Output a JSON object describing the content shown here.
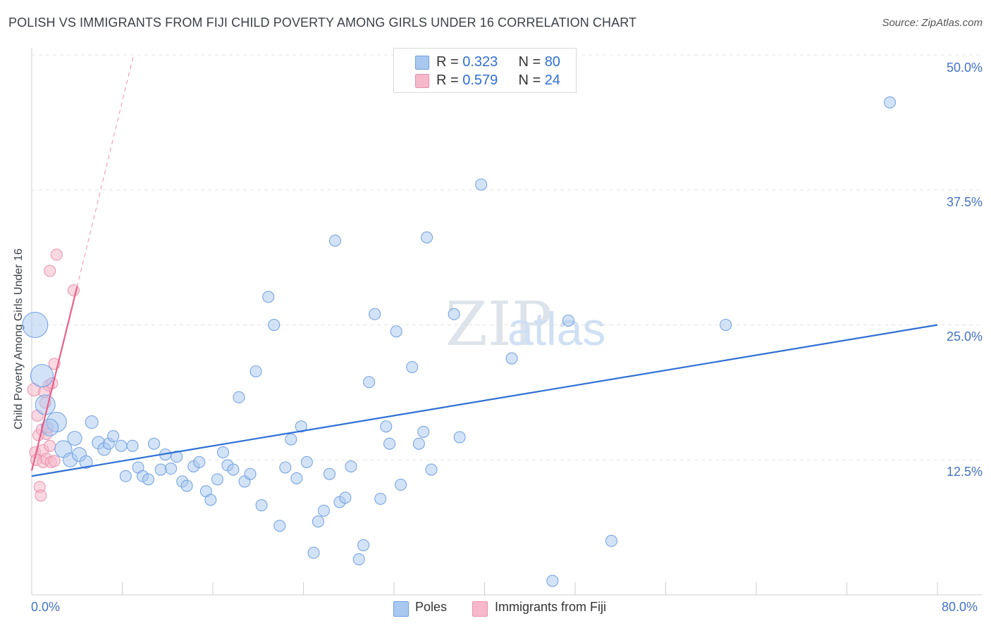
{
  "header": {
    "title": "POLISH VS IMMIGRANTS FROM FIJI CHILD POVERTY AMONG GIRLS UNDER 16 CORRELATION CHART",
    "source": "Source: ZipAtlas.com"
  },
  "watermark": {
    "zip": "ZIP",
    "atlas": "atlas"
  },
  "legend": {
    "rows": [
      {
        "r_label": "R = ",
        "r_value": "0.323",
        "n_label": "N = ",
        "n_value": "80",
        "color": "#a8c8f0"
      },
      {
        "r_label": "R = ",
        "r_value": "0.579",
        "n_label": "N = ",
        "n_value": "24",
        "color": "#f6b8cb"
      }
    ]
  },
  "bottom_legend": {
    "poles": "Poles",
    "fiji": "Immigrants from Fiji"
  },
  "colors": {
    "poles_fill": "#a8c8f0",
    "poles_stroke": "#6f9fe0",
    "poles_line": "#2f6fd6",
    "fiji_fill": "#f6b8cb",
    "fiji_stroke": "#e890ad",
    "fiji_line": "#e8608a",
    "grid": "#e4e4e4",
    "axis_label": "#4472c4"
  },
  "chart_data": {
    "type": "scatter",
    "title": "POLISH VS IMMIGRANTS FROM FIJI CHILD POVERTY AMONG GIRLS UNDER 16 CORRELATION CHART",
    "xlabel": "",
    "ylabel": "Child Poverty Among Girls Under 16",
    "xlim": [
      0,
      80
    ],
    "ylim": [
      0,
      50
    ],
    "x_tick_labels": [
      "0.0%",
      "80.0%"
    ],
    "y_ticks": [
      12.5,
      25.0,
      37.5,
      50.0
    ],
    "y_tick_labels": [
      "12.5%",
      "25.0%",
      "37.5%",
      "50.0%"
    ],
    "grid": true,
    "series": [
      {
        "name": "Poles",
        "r": 0.323,
        "n": 80,
        "trend": {
          "x0": 0,
          "y0": 11.0,
          "x1": 80,
          "y1": 25.0
        },
        "points": [
          [
            0.3,
            25.0,
            18
          ],
          [
            0.9,
            20.3,
            16
          ],
          [
            1.2,
            17.6,
            14
          ],
          [
            2.2,
            16.0,
            14
          ],
          [
            1.6,
            15.5,
            12
          ],
          [
            2.8,
            13.5,
            12
          ],
          [
            3.4,
            12.5,
            10
          ],
          [
            3.8,
            14.5,
            10
          ],
          [
            4.2,
            13.0,
            10
          ],
          [
            4.8,
            12.3,
            9
          ],
          [
            5.3,
            16.0,
            9
          ],
          [
            5.9,
            14.1,
            9
          ],
          [
            6.4,
            13.5,
            9
          ],
          [
            6.8,
            14.0,
            8
          ],
          [
            7.2,
            14.7,
            8
          ],
          [
            7.9,
            13.8,
            8
          ],
          [
            8.3,
            11.0,
            8
          ],
          [
            8.9,
            13.8,
            8
          ],
          [
            9.4,
            11.8,
            8
          ],
          [
            9.8,
            11.0,
            8
          ],
          [
            10.3,
            10.7,
            8
          ],
          [
            10.8,
            14.0,
            8
          ],
          [
            11.4,
            11.6,
            8
          ],
          [
            11.8,
            13.0,
            8
          ],
          [
            12.3,
            11.7,
            8
          ],
          [
            12.8,
            12.8,
            8
          ],
          [
            13.3,
            10.5,
            8
          ],
          [
            13.7,
            10.1,
            8
          ],
          [
            14.3,
            11.9,
            8
          ],
          [
            14.8,
            12.3,
            8
          ],
          [
            15.4,
            9.6,
            8
          ],
          [
            15.8,
            8.8,
            8
          ],
          [
            16.4,
            10.7,
            8
          ],
          [
            16.9,
            13.2,
            8
          ],
          [
            17.3,
            12.0,
            8
          ],
          [
            17.8,
            11.6,
            8
          ],
          [
            18.3,
            18.3,
            8
          ],
          [
            18.8,
            10.5,
            8
          ],
          [
            19.3,
            11.2,
            8
          ],
          [
            19.8,
            20.7,
            8
          ],
          [
            20.3,
            8.3,
            8
          ],
          [
            20.9,
            27.6,
            8
          ],
          [
            21.4,
            25.0,
            8
          ],
          [
            21.9,
            6.4,
            8
          ],
          [
            22.4,
            11.8,
            8
          ],
          [
            22.9,
            14.4,
            8
          ],
          [
            23.4,
            10.8,
            8
          ],
          [
            23.8,
            15.6,
            8
          ],
          [
            24.3,
            12.3,
            8
          ],
          [
            24.9,
            3.9,
            8
          ],
          [
            25.3,
            6.8,
            8
          ],
          [
            25.8,
            7.8,
            8
          ],
          [
            26.3,
            11.2,
            8
          ],
          [
            26.8,
            32.8,
            8
          ],
          [
            27.2,
            8.6,
            8
          ],
          [
            27.7,
            9.0,
            8
          ],
          [
            28.2,
            11.9,
            8
          ],
          [
            28.9,
            3.3,
            8
          ],
          [
            29.3,
            4.6,
            8
          ],
          [
            29.8,
            19.7,
            8
          ],
          [
            30.3,
            26.0,
            8
          ],
          [
            30.8,
            8.9,
            8
          ],
          [
            31.3,
            15.6,
            8
          ],
          [
            31.6,
            14.0,
            8
          ],
          [
            32.2,
            24.4,
            8
          ],
          [
            32.6,
            10.2,
            8
          ],
          [
            33.6,
            21.1,
            8
          ],
          [
            34.2,
            14.0,
            8
          ],
          [
            34.6,
            15.1,
            8
          ],
          [
            34.9,
            33.1,
            8
          ],
          [
            35.3,
            11.6,
            8
          ],
          [
            37.3,
            26.0,
            8
          ],
          [
            37.8,
            14.6,
            8
          ],
          [
            39.7,
            38.0,
            8
          ],
          [
            42.4,
            21.9,
            8
          ],
          [
            46.0,
            1.3,
            8
          ],
          [
            47.4,
            25.4,
            8
          ],
          [
            51.2,
            5.0,
            8
          ],
          [
            61.3,
            25.0,
            8
          ],
          [
            75.8,
            45.6,
            8
          ]
        ]
      },
      {
        "name": "Immigrants from Fiji",
        "r": 0.579,
        "n": 24,
        "trend": {
          "x0": 0,
          "y0": 11.5,
          "x1": 4.0,
          "y1": 28.5,
          "dash_x1": 9.0,
          "dash_y1": 50.0
        },
        "points": [
          [
            0.2,
            19.0,
            9
          ],
          [
            0.3,
            13.2,
            8
          ],
          [
            0.4,
            12.5,
            8
          ],
          [
            0.5,
            16.6,
            8
          ],
          [
            0.6,
            14.8,
            8
          ],
          [
            0.7,
            10.0,
            8
          ],
          [
            0.8,
            9.2,
            8
          ],
          [
            0.9,
            15.3,
            8
          ],
          [
            1.0,
            13.4,
            8
          ],
          [
            1.0,
            12.3,
            8
          ],
          [
            1.1,
            18.8,
            8
          ],
          [
            1.2,
            17.8,
            8
          ],
          [
            1.3,
            14.9,
            8
          ],
          [
            1.3,
            12.6,
            8
          ],
          [
            1.4,
            15.5,
            8
          ],
          [
            1.5,
            19.4,
            8
          ],
          [
            1.6,
            13.8,
            8
          ],
          [
            1.6,
            30.0,
            8
          ],
          [
            1.7,
            12.3,
            8
          ],
          [
            1.8,
            19.6,
            8
          ],
          [
            2.0,
            12.4,
            8
          ],
          [
            2.0,
            21.4,
            8
          ],
          [
            2.2,
            31.5,
            8
          ],
          [
            3.7,
            28.2,
            8
          ]
        ]
      }
    ]
  }
}
